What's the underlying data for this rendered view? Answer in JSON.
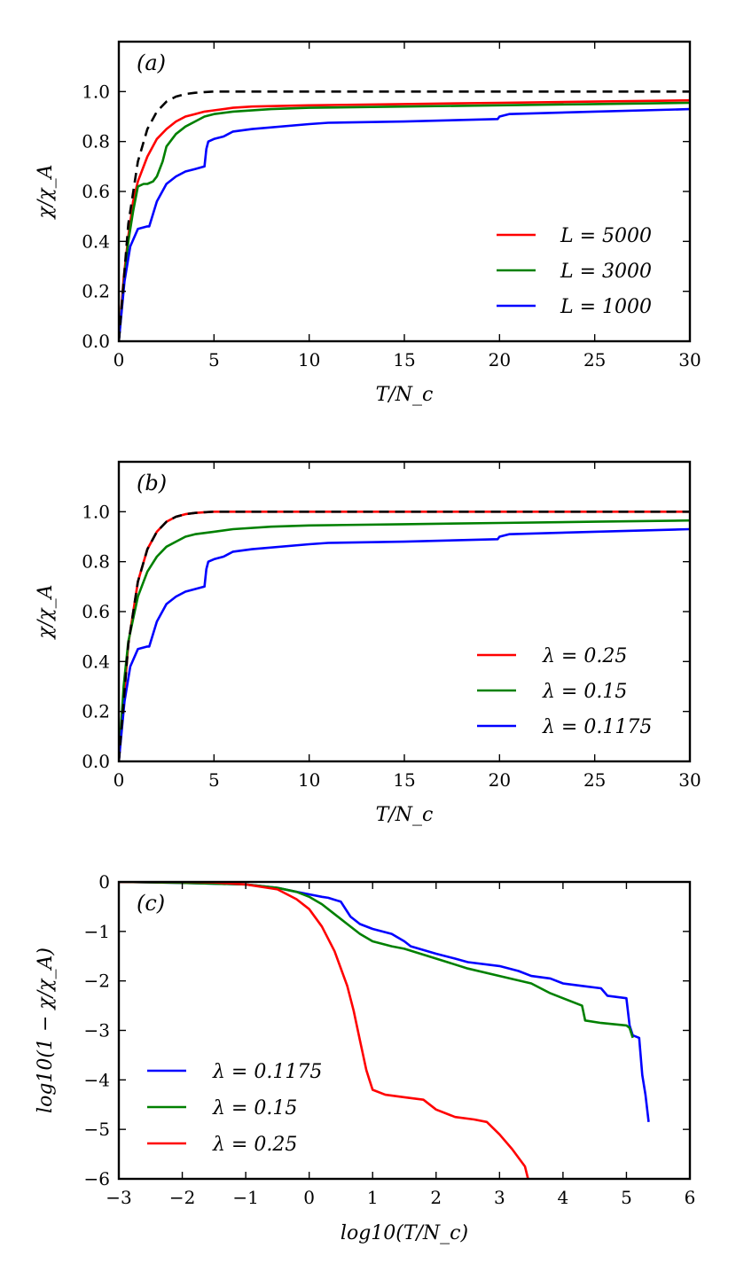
{
  "chart_data": [
    {
      "panel": "(a)",
      "type": "line",
      "xlabel": "T/N_c",
      "ylabel": "χ/χ_A",
      "xlim": [
        0,
        30
      ],
      "ylim": [
        0,
        1.2
      ],
      "xticks": [
        0,
        5,
        10,
        15,
        20,
        25,
        30
      ],
      "xtick_labels": [
        "0",
        "5",
        "10",
        "15",
        "20",
        "25",
        "30"
      ],
      "yticks": [
        0.0,
        0.2,
        0.4,
        0.6,
        0.8,
        1.0
      ],
      "ytick_labels": [
        "0.0",
        "0.2",
        "0.4",
        "0.6",
        "0.8",
        "1.0"
      ],
      "legend_position": "lower-right",
      "series": [
        {
          "name": "L = 5000",
          "color": "#ff0000",
          "in_legend": true,
          "x": [
            0,
            0.25,
            0.5,
            0.75,
            1.0,
            1.5,
            2.0,
            2.5,
            3.0,
            3.5,
            4.0,
            4.5,
            5.0,
            6.0,
            7.0,
            10.0,
            15.0,
            20.0,
            25.0,
            30.0
          ],
          "y": [
            0,
            0.25,
            0.42,
            0.56,
            0.64,
            0.74,
            0.81,
            0.85,
            0.88,
            0.9,
            0.91,
            0.92,
            0.925,
            0.935,
            0.94,
            0.945,
            0.95,
            0.955,
            0.96,
            0.965
          ]
        },
        {
          "name": "L = 3000",
          "color": "#008000",
          "in_legend": true,
          "x": [
            0,
            0.25,
            0.5,
            0.75,
            1.0,
            1.3,
            1.5,
            1.8,
            2.0,
            2.3,
            2.5,
            3.0,
            3.5,
            4.0,
            4.5,
            5.0,
            6.0,
            8.0,
            10.0,
            15.0,
            20.0,
            25.0,
            30.0
          ],
          "y": [
            0,
            0.22,
            0.4,
            0.52,
            0.62,
            0.63,
            0.63,
            0.64,
            0.66,
            0.72,
            0.78,
            0.83,
            0.86,
            0.88,
            0.9,
            0.91,
            0.92,
            0.93,
            0.935,
            0.94,
            0.945,
            0.95,
            0.955
          ]
        },
        {
          "name": "L = 1000",
          "color": "#0000ff",
          "in_legend": true,
          "x": [
            0,
            0.3,
            0.6,
            1.0,
            1.5,
            1.6,
            2.0,
            2.5,
            3.0,
            3.5,
            4.0,
            4.5,
            4.6,
            4.7,
            5.0,
            5.5,
            6.0,
            7.0,
            10.0,
            11.0,
            15.0,
            19.9,
            20.0,
            20.5,
            25.0,
            30.0
          ],
          "y": [
            0,
            0.24,
            0.38,
            0.45,
            0.46,
            0.46,
            0.56,
            0.63,
            0.66,
            0.68,
            0.69,
            0.7,
            0.77,
            0.8,
            0.81,
            0.82,
            0.84,
            0.85,
            0.87,
            0.875,
            0.88,
            0.89,
            0.9,
            0.91,
            0.92,
            0.93
          ]
        },
        {
          "name": "reference",
          "color": "#000000",
          "dashed": true,
          "in_legend": false,
          "x": [
            0,
            0.5,
            1.0,
            1.5,
            2.0,
            2.5,
            3.0,
            3.5,
            4.0,
            4.5,
            5.0,
            5.5,
            6.0,
            30.0
          ],
          "y": [
            0,
            0.47,
            0.72,
            0.85,
            0.92,
            0.96,
            0.98,
            0.99,
            0.995,
            0.998,
            1.0,
            1.0,
            1.0,
            1.0
          ]
        }
      ]
    },
    {
      "panel": "(b)",
      "type": "line",
      "xlabel": "T/N_c",
      "ylabel": "χ/χ_A",
      "xlim": [
        0,
        30
      ],
      "ylim": [
        0,
        1.2
      ],
      "xticks": [
        0,
        5,
        10,
        15,
        20,
        25,
        30
      ],
      "xtick_labels": [
        "0",
        "5",
        "10",
        "15",
        "20",
        "25",
        "30"
      ],
      "yticks": [
        0.0,
        0.2,
        0.4,
        0.6,
        0.8,
        1.0
      ],
      "ytick_labels": [
        "0.0",
        "0.2",
        "0.4",
        "0.6",
        "0.8",
        "1.0"
      ],
      "legend_position": "lower-right",
      "series": [
        {
          "name": "λ = 0.25",
          "color": "#ff0000",
          "in_legend": true,
          "x": [
            0,
            0.5,
            1.0,
            1.5,
            2.0,
            2.5,
            3.0,
            3.5,
            4.0,
            4.5,
            5.0,
            5.5,
            6.0,
            30.0
          ],
          "y": [
            0,
            0.47,
            0.72,
            0.85,
            0.92,
            0.96,
            0.98,
            0.99,
            0.995,
            0.998,
            1.0,
            1.0,
            1.0,
            1.0
          ]
        },
        {
          "name": "λ = 0.15",
          "color": "#008000",
          "in_legend": true,
          "x": [
            0,
            0.25,
            0.5,
            1.0,
            1.5,
            2.0,
            2.5,
            3.0,
            3.5,
            4.0,
            5.0,
            6.0,
            8.0,
            10.0,
            15.0,
            20.0,
            25.0,
            30.0
          ],
          "y": [
            0,
            0.3,
            0.48,
            0.66,
            0.76,
            0.82,
            0.86,
            0.88,
            0.9,
            0.91,
            0.92,
            0.93,
            0.94,
            0.945,
            0.95,
            0.955,
            0.96,
            0.965
          ]
        },
        {
          "name": "λ = 0.1175",
          "color": "#0000ff",
          "in_legend": true,
          "x": [
            0,
            0.3,
            0.6,
            1.0,
            1.5,
            1.6,
            2.0,
            2.5,
            3.0,
            3.5,
            4.0,
            4.5,
            4.6,
            4.7,
            5.0,
            5.5,
            6.0,
            7.0,
            10.0,
            11.0,
            15.0,
            19.9,
            20.0,
            20.5,
            25.0,
            30.0
          ],
          "y": [
            0,
            0.24,
            0.38,
            0.45,
            0.46,
            0.46,
            0.56,
            0.63,
            0.66,
            0.68,
            0.69,
            0.7,
            0.77,
            0.8,
            0.81,
            0.82,
            0.84,
            0.85,
            0.87,
            0.875,
            0.88,
            0.89,
            0.9,
            0.91,
            0.92,
            0.93
          ]
        },
        {
          "name": "reference",
          "color": "#000000",
          "dashed": true,
          "in_legend": false,
          "x": [
            0,
            0.5,
            1.0,
            1.5,
            2.0,
            2.5,
            3.0,
            3.5,
            4.0,
            4.5,
            5.0,
            5.5,
            6.0,
            30.0
          ],
          "y": [
            0,
            0.47,
            0.72,
            0.85,
            0.92,
            0.96,
            0.98,
            0.99,
            0.995,
            0.998,
            1.0,
            1.0,
            1.0,
            1.0
          ]
        }
      ]
    },
    {
      "panel": "(c)",
      "type": "line",
      "xlabel": "log10(T/N_c)",
      "ylabel": "log10(1 − χ/χ_A)",
      "xlim": [
        -3,
        6
      ],
      "ylim": [
        -6,
        0
      ],
      "xticks": [
        -3,
        -2,
        -1,
        0,
        1,
        2,
        3,
        4,
        5,
        6
      ],
      "xtick_labels": [
        "−3",
        "−2",
        "−1",
        "0",
        "1",
        "2",
        "3",
        "4",
        "5",
        "6"
      ],
      "yticks": [
        0,
        -1,
        -2,
        -3,
        -4,
        -5,
        -6
      ],
      "ytick_labels": [
        "0",
        "−1",
        "−2",
        "−3",
        "−4",
        "−5",
        "−6"
      ],
      "legend_position": "lower-left",
      "series": [
        {
          "name": "λ = 0.1175",
          "color": "#0000ff",
          "in_legend": true,
          "x": [
            -3,
            -2,
            -1,
            -0.5,
            -0.2,
            0,
            0.2,
            0.3,
            0.5,
            0.6,
            0.65,
            0.8,
            1.0,
            1.3,
            1.5,
            1.6,
            2.0,
            2.3,
            2.5,
            3.0,
            3.3,
            3.5,
            3.8,
            4.0,
            4.3,
            4.6,
            4.7,
            5.0,
            5.05,
            5.1,
            5.2,
            5.25,
            5.3,
            5.35
          ],
          "y": [
            0,
            -0.02,
            -0.05,
            -0.12,
            -0.2,
            -0.25,
            -0.3,
            -0.32,
            -0.4,
            -0.6,
            -0.7,
            -0.85,
            -0.95,
            -1.05,
            -1.2,
            -1.3,
            -1.45,
            -1.55,
            -1.62,
            -1.7,
            -1.8,
            -1.9,
            -1.95,
            -2.05,
            -2.1,
            -2.15,
            -2.3,
            -2.35,
            -2.9,
            -3.1,
            -3.15,
            -3.9,
            -4.3,
            -4.85
          ]
        },
        {
          "name": "λ = 0.15",
          "color": "#008000",
          "in_legend": true,
          "x": [
            -3,
            -2,
            -1,
            -0.5,
            -0.2,
            0,
            0.2,
            0.4,
            0.6,
            0.8,
            1.0,
            1.3,
            1.5,
            2.0,
            2.5,
            3.0,
            3.5,
            3.8,
            4.0,
            4.3,
            4.35,
            4.6,
            5.0,
            5.05,
            5.1
          ],
          "y": [
            0,
            -0.02,
            -0.05,
            -0.12,
            -0.2,
            -0.3,
            -0.45,
            -0.65,
            -0.85,
            -1.05,
            -1.2,
            -1.3,
            -1.35,
            -1.55,
            -1.75,
            -1.9,
            -2.05,
            -2.25,
            -2.35,
            -2.5,
            -2.8,
            -2.85,
            -2.9,
            -2.95,
            -3.15
          ]
        },
        {
          "name": "λ = 0.25",
          "color": "#ff0000",
          "in_legend": true,
          "x": [
            -3,
            -2,
            -1.5,
            -1.0,
            -0.5,
            -0.2,
            0,
            0.2,
            0.4,
            0.6,
            0.7,
            0.8,
            0.85,
            0.9,
            0.95,
            1.0,
            1.2,
            1.5,
            1.8,
            2.0,
            2.3,
            2.6,
            2.8,
            3.0,
            3.2,
            3.4,
            3.45
          ],
          "y": [
            0,
            0,
            -0.01,
            -0.05,
            -0.15,
            -0.35,
            -0.55,
            -0.9,
            -1.4,
            -2.1,
            -2.6,
            -3.2,
            -3.5,
            -3.8,
            -4.0,
            -4.2,
            -4.3,
            -4.35,
            -4.4,
            -4.6,
            -4.75,
            -4.8,
            -4.85,
            -5.1,
            -5.4,
            -5.75,
            -6.0
          ]
        }
      ]
    }
  ]
}
